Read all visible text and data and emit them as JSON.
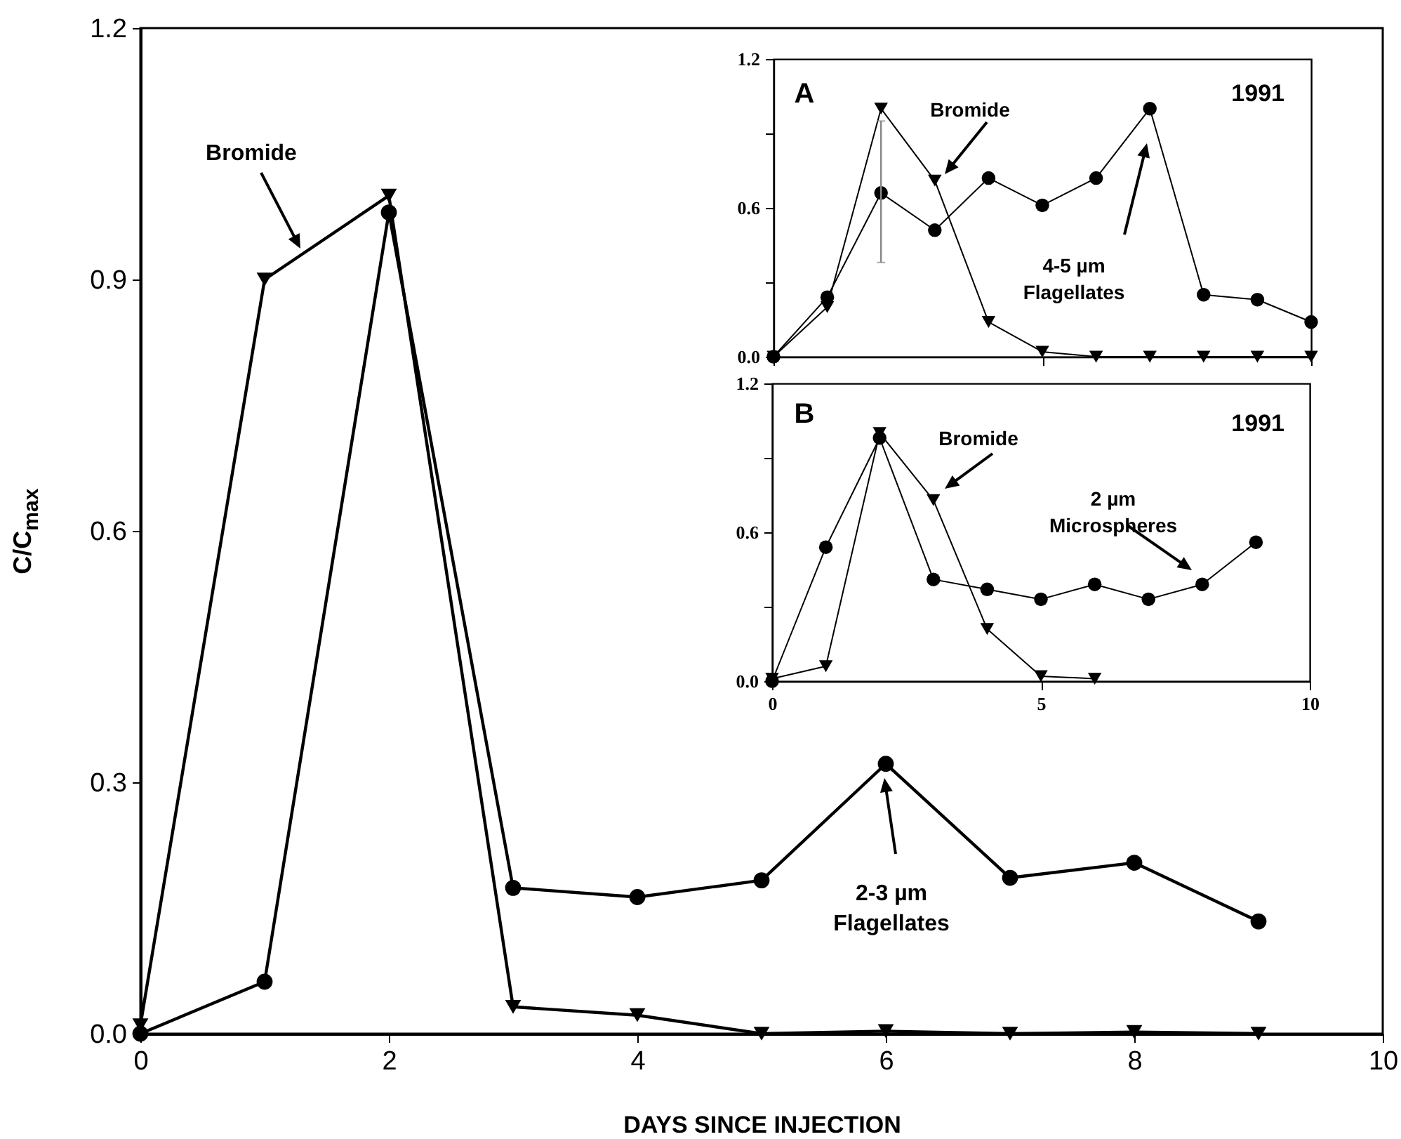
{
  "chart_data": [
    {
      "type": "line",
      "xlabel": "DAYS SINCE INJECTION",
      "ylabel": "C/C$_{max}$",
      "x": [
        0,
        1,
        2,
        3,
        4,
        5,
        6,
        7,
        8,
        9
      ],
      "series": [
        {
          "color": "#000000",
          "marker": "triangle",
          "values": [
            0.01,
            0.9,
            1.0,
            0.032,
            0.022,
            0.0,
            0.003,
            0.0,
            0.002,
            0.0
          ]
        },
        {
          "color": "#000000",
          "marker": "circle",
          "values": [
            0.0,
            0.062,
            0.98,
            0.174,
            0.163,
            0.183,
            0.322,
            0.186,
            0.204,
            0.134
          ]
        }
      ],
      "xlim": [
        0,
        10
      ],
      "xticks": [
        0,
        2,
        4,
        6,
        8,
        10
      ],
      "ylim": [
        0,
        1.2
      ],
      "yticks": [
        {
          "value": 0,
          "label": "0.0"
        },
        0.3,
        0.6,
        0.9,
        1.2
      ],
      "annotations": [
        "Bromide",
        "2-3 µm\nFlagellates"
      ]
    },
    {
      "type": "line",
      "x": [
        0,
        1,
        2,
        3,
        4,
        5,
        6,
        7,
        8,
        9,
        10
      ],
      "series": [
        {
          "color": "#000000",
          "marker": "circle",
          "values": [
            0.0,
            0.24,
            0.66,
            0.51,
            0.72,
            0.61,
            0.72,
            1.0,
            0.25,
            0.23,
            0.14
          ],
          "errors": [
            null,
            null,
            [
              0.38,
              0.95
            ],
            null,
            null,
            null,
            null,
            null,
            null,
            null,
            null
          ]
        },
        {
          "color": "#000000",
          "marker": "triangle",
          "values": [
            0.0,
            0.2,
            1.0,
            0.71,
            0.14,
            0.02,
            0.0,
            0.0,
            0.0,
            0.0,
            0.0
          ]
        }
      ],
      "xlim": [
        0,
        10
      ],
      "xticks": [
        {
          "value": 0,
          "label": null
        },
        {
          "value": 5,
          "label": null
        },
        {
          "value": 10,
          "label": null
        }
      ],
      "ylim": [
        0,
        1.2
      ],
      "yticks": [
        {
          "value": 0,
          "label": "0.0"
        },
        {
          "value": 0.3,
          "label": null
        },
        0.6,
        {
          "value": 0.9,
          "label": null
        },
        1.2
      ],
      "tick_labels": "y",
      "annotations": [
        "A",
        "1991",
        "Bromide",
        "4-5 µm\nFlagellates"
      ]
    },
    {
      "type": "line",
      "x": [
        0,
        1,
        2,
        3,
        4,
        5,
        6,
        7,
        8,
        9
      ],
      "series": [
        {
          "color": "#000000",
          "marker": "triangle",
          "x": [
            0,
            1,
            2,
            3,
            4,
            5,
            6
          ],
          "values": [
            0.01,
            0.06,
            1.0,
            0.73,
            0.21,
            0.02,
            0.01
          ]
        },
        {
          "color": "#000000",
          "marker": "circle",
          "values": [
            0.0,
            0.54,
            0.98,
            0.41,
            0.37,
            0.33,
            0.39,
            0.33,
            0.39,
            0.56
          ]
        }
      ],
      "xlim": [
        0,
        10
      ],
      "xticks": [
        0,
        5,
        10
      ],
      "ylim": [
        0,
        1.2
      ],
      "yticks": [
        {
          "value": 0,
          "label": "0.0"
        },
        {
          "value": 0.3,
          "label": null
        },
        0.6,
        {
          "value": 0.9,
          "label": null
        },
        1.2
      ],
      "annotations": [
        "B",
        "1991",
        "Bromide",
        "2 µm\nMicrospheres"
      ]
    }
  ]
}
